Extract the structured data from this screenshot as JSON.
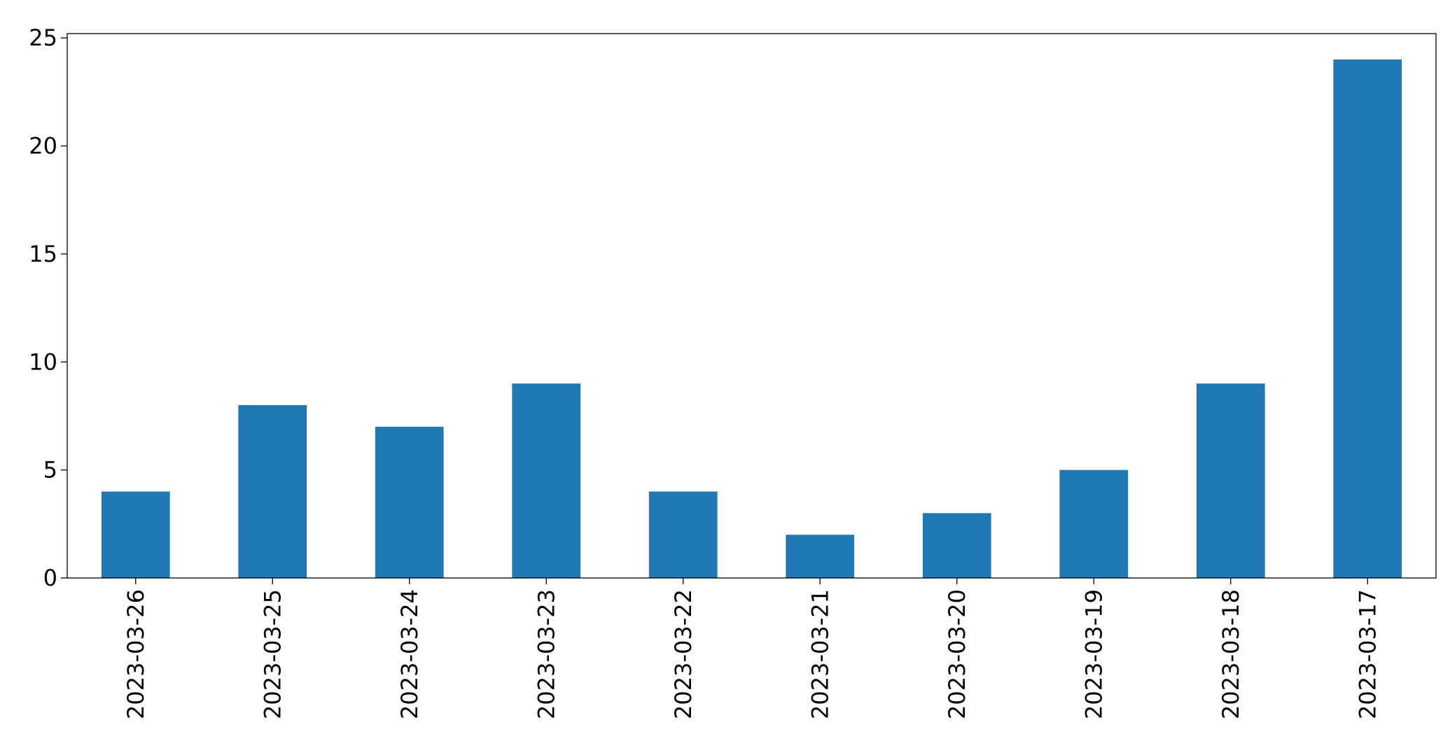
{
  "chart_data": {
    "type": "bar",
    "categories": [
      "2023-03-26",
      "2023-03-25",
      "2023-03-24",
      "2023-03-23",
      "2023-03-22",
      "2023-03-21",
      "2023-03-20",
      "2023-03-19",
      "2023-03-18",
      "2023-03-17"
    ],
    "values": [
      4,
      8,
      7,
      9,
      4,
      2,
      3,
      5,
      9,
      24
    ],
    "color": "#1f77b4",
    "ylim": [
      0,
      25.2
    ],
    "yticks": [
      0,
      5,
      10,
      15,
      20,
      25
    ],
    "grid": false
  }
}
